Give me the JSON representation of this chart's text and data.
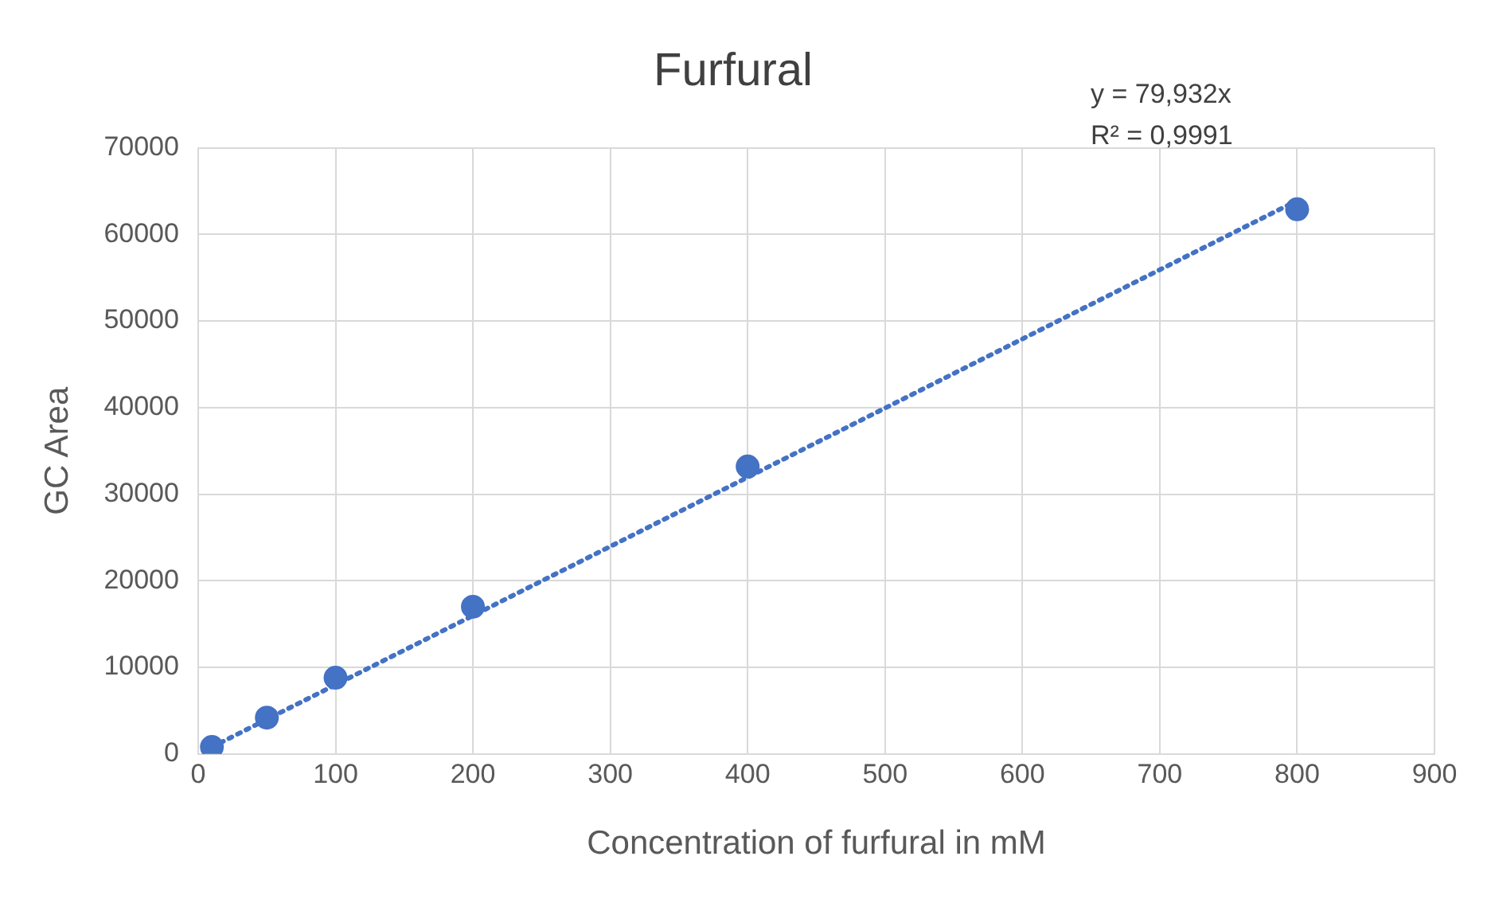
{
  "chart_data": {
    "type": "scatter",
    "title": "Furfural",
    "xlabel": "Concentration of furfural in mM",
    "ylabel": "GC Area",
    "x": [
      10,
      50,
      100,
      200,
      400,
      800
    ],
    "series": [
      {
        "type": "scatter",
        "color": "#4472c4",
        "values": [
          800,
          4200,
          8800,
          17000,
          33200,
          62900
        ],
        "marker": "circle"
      },
      {
        "type": "line",
        "color": "#4472c4",
        "x": [
          10,
          800
        ],
        "values": [
          800,
          63900
        ],
        "line_style": "dotted",
        "marker": "none"
      }
    ],
    "xlim": [
      0,
      900
    ],
    "xticks": [
      0,
      100,
      200,
      300,
      400,
      500,
      600,
      700,
      800,
      900
    ],
    "ylim": [
      0,
      70000
    ],
    "yticks": [
      0,
      10000,
      20000,
      30000,
      40000,
      50000,
      60000,
      70000
    ],
    "grid": true,
    "legend": false,
    "annotations": [
      "y = 79,932x",
      "R² = 0,9991"
    ]
  }
}
